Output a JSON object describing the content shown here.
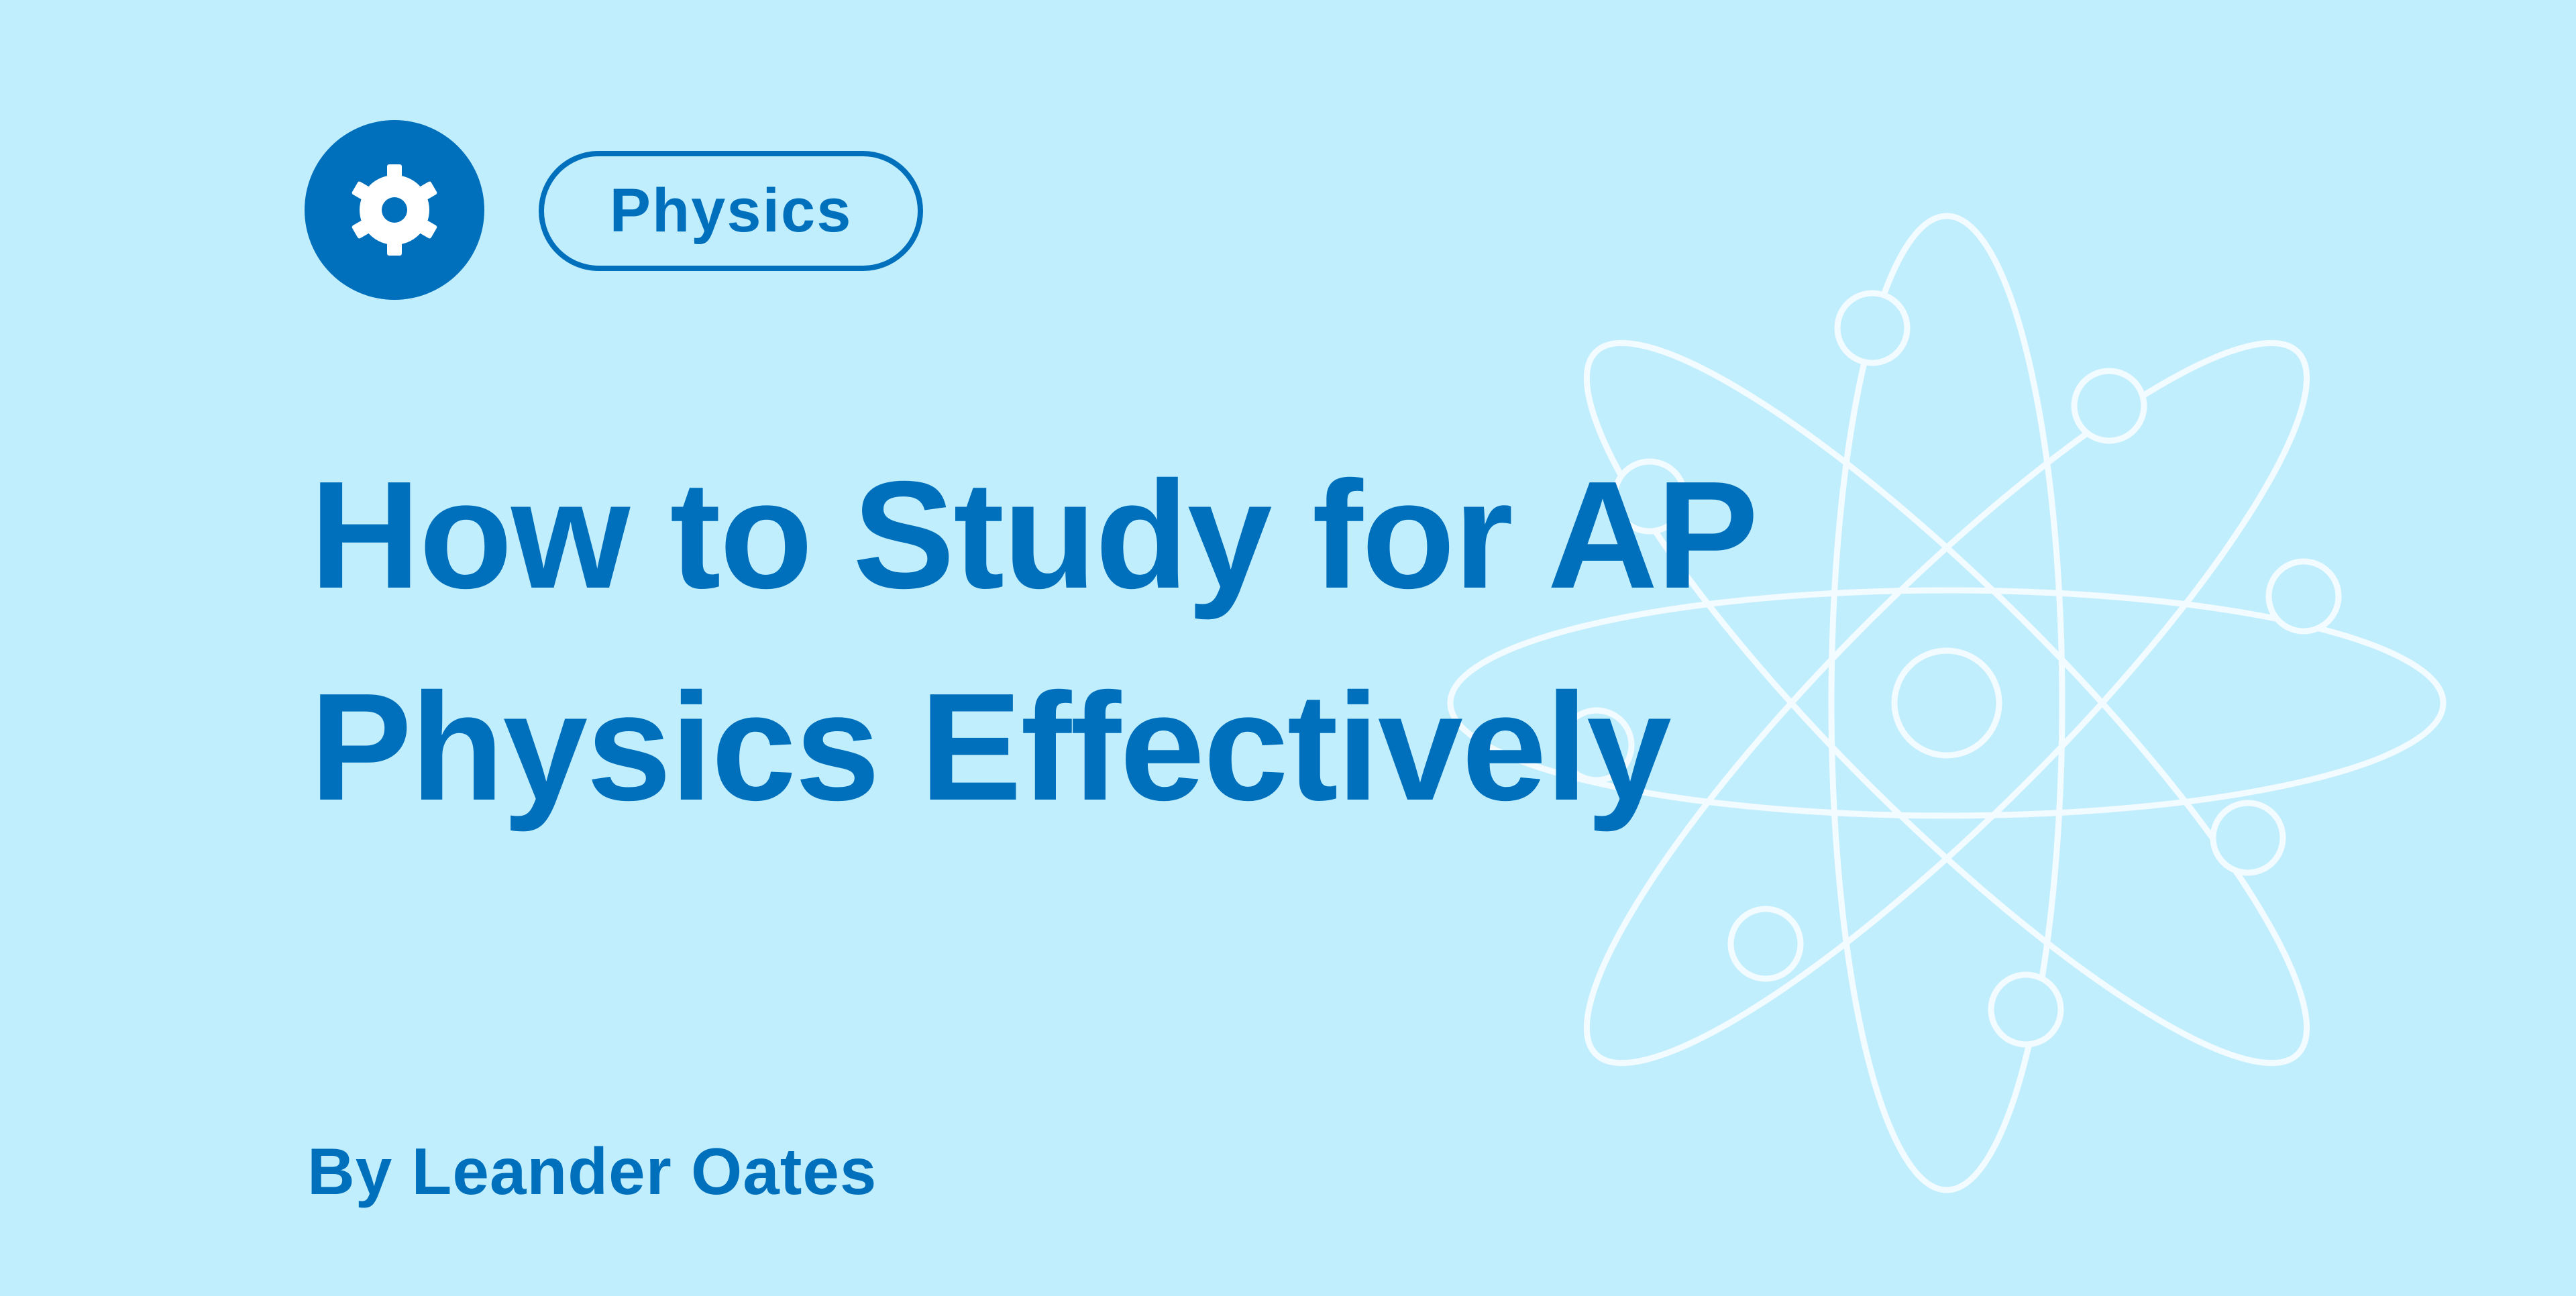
{
  "category_tag": "Physics",
  "icon": "gear-icon",
  "title_lines": [
    "How to Study for AP",
    "Physics Effectively"
  ],
  "byline": "By Leander Oates",
  "colors": {
    "background": "#C1EEFD",
    "accent": "#0070BD",
    "illustration": "#F2FBFF"
  }
}
